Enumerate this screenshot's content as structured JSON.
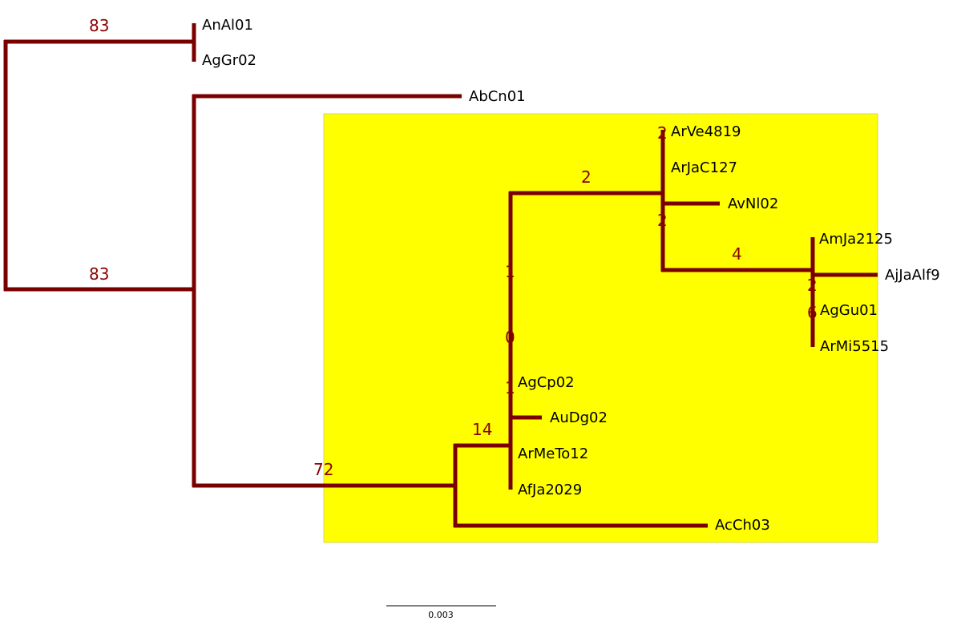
{
  "tree": {
    "highlight_color": "#ffff00",
    "branch_color": "#7a0000",
    "support_color": "#8b0000",
    "tips": [
      {
        "id": "AnAl01",
        "label": "AnAl01"
      },
      {
        "id": "AgGr02",
        "label": "AgGr02"
      },
      {
        "id": "AbCn01",
        "label": "AbCn01"
      },
      {
        "id": "ArVe4819",
        "label": "ArVe4819"
      },
      {
        "id": "ArJaC127",
        "label": "ArJaC127"
      },
      {
        "id": "AvNl02",
        "label": "AvNl02"
      },
      {
        "id": "AmJa2125",
        "label": "AmJa2125"
      },
      {
        "id": "AjJaAlf9",
        "label": "AjJaAlf9"
      },
      {
        "id": "AgGu01",
        "label": "AgGu01"
      },
      {
        "id": "ArMi5515",
        "label": "ArMi5515"
      },
      {
        "id": "AgCp02",
        "label": "AgCp02"
      },
      {
        "id": "AuDg02",
        "label": "AuDg02"
      },
      {
        "id": "ArMeTo12",
        "label": "ArMeTo12"
      },
      {
        "id": "AfJa2029",
        "label": "AfJa2029"
      },
      {
        "id": "AcCh03",
        "label": "AcCh03"
      }
    ],
    "supports": [
      {
        "id": "s_top",
        "value": "83"
      },
      {
        "id": "s_mid",
        "value": "83"
      },
      {
        "id": "s_72",
        "value": "72"
      },
      {
        "id": "s_14",
        "value": "14"
      },
      {
        "id": "s_2a",
        "value": "2"
      },
      {
        "id": "s_4",
        "value": "4"
      },
      {
        "id": "s_2b",
        "value": "2"
      },
      {
        "id": "s_2c",
        "value": "2"
      },
      {
        "id": "s_1a",
        "value": "1"
      },
      {
        "id": "s_0",
        "value": "0"
      },
      {
        "id": "s_1b",
        "value": "1"
      },
      {
        "id": "s_2d",
        "value": "2"
      },
      {
        "id": "s_6",
        "value": "6"
      }
    ]
  },
  "scale": {
    "label": "0.003"
  }
}
